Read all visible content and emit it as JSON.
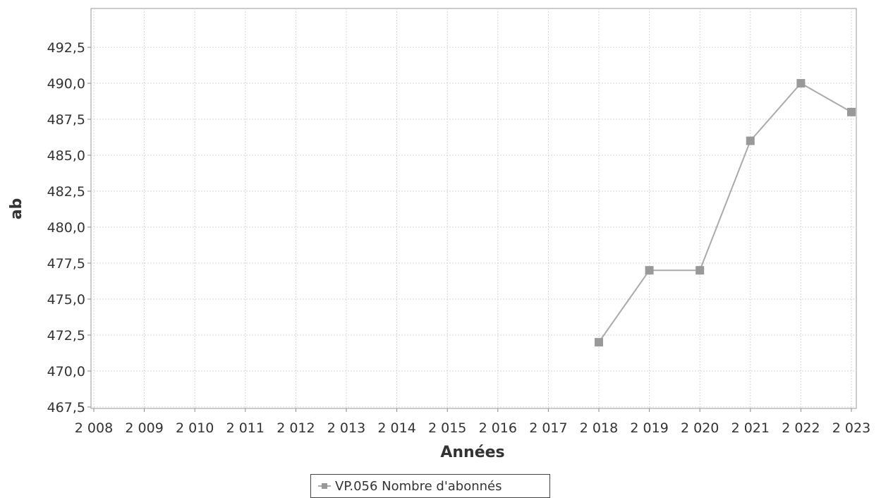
{
  "chart_data": {
    "type": "line",
    "title": "",
    "xlabel": "Années",
    "ylabel": "ab",
    "x_ticks": [
      "2 008",
      "2 009",
      "2 010",
      "2 011",
      "2 012",
      "2 013",
      "2 014",
      "2 015",
      "2 016",
      "2 017",
      "2 018",
      "2 019",
      "2 020",
      "2 021",
      "2 022",
      "2 023"
    ],
    "y_ticks": [
      "467,5",
      "470,0",
      "472,5",
      "475,0",
      "477,5",
      "480,0",
      "482,5",
      "485,0",
      "487,5",
      "490,0",
      "492,5"
    ],
    "xlim": [
      2008,
      2023
    ],
    "ylim": [
      467.4,
      495.2
    ],
    "grid": true,
    "legend_position": "bottom",
    "series": [
      {
        "name": "VP.056 Nombre d'abonnés",
        "color": "#aaaaaa",
        "marker_color": "#999999",
        "x": [
          2018,
          2019,
          2020,
          2021,
          2022,
          2023
        ],
        "y": [
          472,
          477,
          477,
          486,
          490,
          488
        ]
      }
    ]
  }
}
